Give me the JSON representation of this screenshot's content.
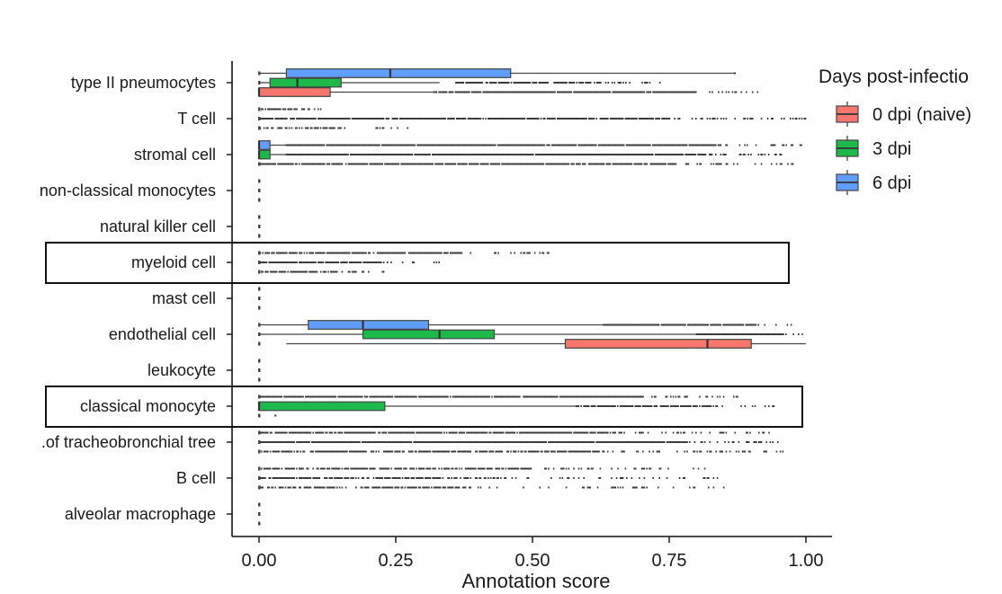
{
  "chart_data": {
    "type": "boxplot",
    "orientation": "horizontal",
    "xlabel": "Annotation score",
    "ylabel": "",
    "xlim": [
      -0.05,
      1.05
    ],
    "x_ticks": [
      "0.00",
      "0.25",
      "0.50",
      "0.75",
      "1.00"
    ],
    "x_tick_values": [
      0,
      0.25,
      0.5,
      0.75,
      1.0
    ],
    "grid": false,
    "legend": {
      "title": "Days post-infectio",
      "placement": "right",
      "entries": [
        {
          "name": "0 dpi (naive)",
          "color": "#F8766D"
        },
        {
          "name": "3 dpi",
          "color": "#1DB94B"
        },
        {
          "name": "6 dpi",
          "color": "#619CFF"
        }
      ]
    },
    "series_order_top_to_bottom": [
      "6 dpi",
      "3 dpi",
      "0 dpi (naive)"
    ],
    "categories": [
      "type II pneumocytes",
      "T cell",
      "stromal cell",
      "non-classical monocytes",
      "natural killer cell",
      "myeloid cell",
      "mast cell",
      "endothelial cell",
      "leukocyte",
      "classical monocyte",
      ".of tracheobronchial tree",
      "B cell",
      "alveolar macrophage"
    ],
    "highlighted_categories": [
      "myeloid cell",
      "classical monocyte"
    ],
    "boxes": [
      {
        "category": "type II pneumocytes",
        "series": "6 dpi",
        "min": 0.0,
        "q1": 0.05,
        "median": 0.24,
        "q3": 0.46,
        "max": 0.87
      },
      {
        "category": "type II pneumocytes",
        "series": "3 dpi",
        "min": 0.0,
        "q1": 0.02,
        "median": 0.07,
        "q3": 0.15,
        "max": 0.33
      },
      {
        "category": "type II pneumocytes",
        "series": "0 dpi (naive)",
        "min": 0.0,
        "q1": 0.0,
        "median": 0.0,
        "q3": 0.13,
        "max": 0.32
      },
      {
        "category": "stromal cell",
        "series": "6 dpi",
        "min": 0.0,
        "q1": 0.0,
        "median": 0.0,
        "q3": 0.02,
        "max": 0.05
      },
      {
        "category": "stromal cell",
        "series": "3 dpi",
        "min": 0.0,
        "q1": 0.0,
        "median": 0.0,
        "q3": 0.02,
        "max": 0.05
      },
      {
        "category": "endothelial cell",
        "series": "6 dpi",
        "min": 0.0,
        "q1": 0.09,
        "median": 0.19,
        "q3": 0.31,
        "max": 0.63
      },
      {
        "category": "endothelial cell",
        "series": "3 dpi",
        "min": 0.0,
        "q1": 0.19,
        "median": 0.33,
        "q3": 0.43,
        "max": 0.8
      },
      {
        "category": "endothelial cell",
        "series": "0 dpi (naive)",
        "min": 0.05,
        "q1": 0.56,
        "median": 0.82,
        "q3": 0.9,
        "max": 1.0
      },
      {
        "category": "classical monocyte",
        "series": "3 dpi",
        "min": 0.0,
        "q1": 0.0,
        "median": 0.0,
        "q3": 0.23,
        "max": 0.58
      }
    ],
    "outlier_ranges": [
      {
        "category": "type II pneumocytes",
        "series": "6 dpi",
        "from": 0.87,
        "to": 0.87,
        "density": 0
      },
      {
        "category": "type II pneumocytes",
        "series": "3 dpi",
        "from": 0.36,
        "to": 0.74,
        "density": 0.6
      },
      {
        "category": "type II pneumocytes",
        "series": "0 dpi (naive)",
        "from": 0.32,
        "to": 0.92,
        "density": 0.9
      },
      {
        "category": "T cell",
        "series": "6 dpi",
        "from": 0.0,
        "to": 0.12,
        "density": 0.4
      },
      {
        "category": "T cell",
        "series": "3 dpi",
        "from": 0.0,
        "to": 1.0,
        "density": 0.8
      },
      {
        "category": "T cell",
        "series": "0 dpi (naive)",
        "from": 0.0,
        "to": 0.28,
        "density": 0.3
      },
      {
        "category": "stromal cell",
        "series": "6 dpi",
        "from": 0.05,
        "to": 1.0,
        "density": 0.95
      },
      {
        "category": "stromal cell",
        "series": "3 dpi",
        "from": 0.05,
        "to": 0.98,
        "density": 0.95
      },
      {
        "category": "stromal cell",
        "series": "0 dpi (naive)",
        "from": 0.0,
        "to": 0.98,
        "density": 0.85
      },
      {
        "category": "myeloid cell",
        "series": "6 dpi",
        "from": 0.0,
        "to": 0.53,
        "density": 0.7
      },
      {
        "category": "myeloid cell",
        "series": "3 dpi",
        "from": 0.0,
        "to": 0.33,
        "density": 0.7
      },
      {
        "category": "myeloid cell",
        "series": "0 dpi (naive)",
        "from": 0.0,
        "to": 0.24,
        "density": 0.5
      },
      {
        "category": "endothelial cell",
        "series": "6 dpi",
        "from": 0.63,
        "to": 0.98,
        "density": 0.9
      },
      {
        "category": "endothelial cell",
        "series": "3 dpi",
        "from": 0.8,
        "to": 1.0,
        "density": 0.9
      },
      {
        "category": "classical monocyte",
        "series": "6 dpi",
        "from": 0.0,
        "to": 0.88,
        "density": 0.9
      },
      {
        "category": "classical monocyte",
        "series": "3 dpi",
        "from": 0.58,
        "to": 0.95,
        "density": 0.7
      },
      {
        "category": "classical monocyte",
        "series": "0 dpi (naive)",
        "from": 0.03,
        "to": 0.03,
        "density": 0
      },
      {
        "category": ".of tracheobronchial tree",
        "series": "6 dpi",
        "from": 0.0,
        "to": 0.95,
        "density": 0.7
      },
      {
        "category": ".of tracheobronchial tree",
        "series": "3 dpi",
        "from": 0.0,
        "to": 0.95,
        "density": 0.95
      },
      {
        "category": ".of tracheobronchial tree",
        "series": "0 dpi (naive)",
        "from": 0.0,
        "to": 0.96,
        "density": 0.6
      },
      {
        "category": "B cell",
        "series": "6 dpi",
        "from": 0.0,
        "to": 0.83,
        "density": 0.5
      },
      {
        "category": "B cell",
        "series": "3 dpi",
        "from": 0.0,
        "to": 0.84,
        "density": 0.35
      },
      {
        "category": "B cell",
        "series": "0 dpi (naive)",
        "from": 0.0,
        "to": 0.86,
        "density": 0.2
      }
    ]
  }
}
